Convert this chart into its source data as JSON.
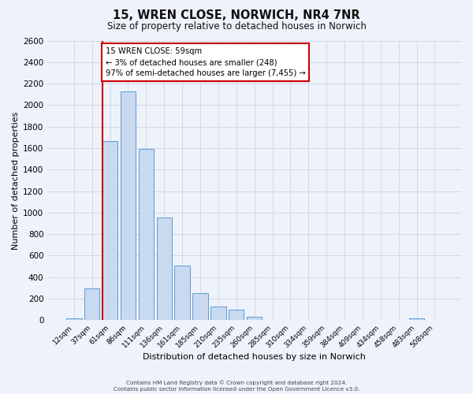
{
  "title": "15, WREN CLOSE, NORWICH, NR4 7NR",
  "subtitle": "Size of property relative to detached houses in Norwich",
  "xlabel": "Distribution of detached houses by size in Norwich",
  "ylabel": "Number of detached properties",
  "bar_color": "#c9d9f0",
  "bar_edge_color": "#5b9bd5",
  "background_color": "#eef2fa",
  "categories": [
    "12sqm",
    "37sqm",
    "61sqm",
    "86sqm",
    "111sqm",
    "136sqm",
    "161sqm",
    "185sqm",
    "210sqm",
    "235sqm",
    "260sqm",
    "285sqm",
    "310sqm",
    "334sqm",
    "359sqm",
    "384sqm",
    "409sqm",
    "434sqm",
    "458sqm",
    "483sqm",
    "508sqm"
  ],
  "values": [
    20,
    295,
    1665,
    2130,
    1590,
    955,
    510,
    255,
    130,
    100,
    30,
    0,
    0,
    0,
    0,
    0,
    0,
    0,
    0,
    20,
    0
  ],
  "ylim": [
    0,
    2600
  ],
  "yticks": [
    0,
    200,
    400,
    600,
    800,
    1000,
    1200,
    1400,
    1600,
    1800,
    2000,
    2200,
    2400,
    2600
  ],
  "property_line_index": 2,
  "annotation_line1": "15 WREN CLOSE: 59sqm",
  "annotation_line2": "← 3% of detached houses are smaller (248)",
  "annotation_line3": "97% of semi-detached houses are larger (7,455) →",
  "footer1": "Contains HM Land Registry data © Crown copyright and database right 2024.",
  "footer2": "Contains public sector information licensed under the Open Government Licence v3.0.",
  "grid_color": "#d0d8ea",
  "property_line_color": "#cc0000",
  "annotation_box_color": "#ffffff",
  "annotation_box_edge_color": "#cc0000"
}
